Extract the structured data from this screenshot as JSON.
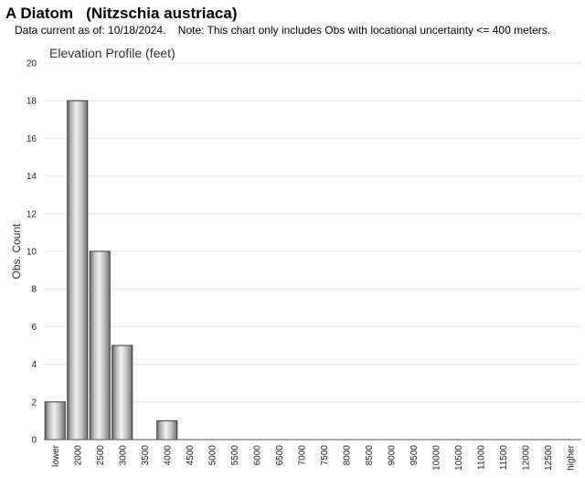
{
  "header": {
    "title": "A Diatom   (Nitzschia austriaca)",
    "note": "Data current as of: 10/18/2024.    Note: This chart only includes Obs with locational uncertainty <= 400 meters."
  },
  "chart_data": {
    "type": "bar",
    "title": "Elevation Profile (feet)",
    "xlabel": "",
    "ylabel": "Obs. Count",
    "ylim": [
      0,
      20
    ],
    "yticks": [
      0,
      2,
      4,
      6,
      8,
      10,
      12,
      14,
      16,
      18,
      20
    ],
    "grid": true,
    "categories": [
      "lower",
      "2000",
      "2500",
      "3000",
      "3500",
      "4000",
      "4500",
      "5000",
      "5500",
      "6000",
      "6500",
      "7000",
      "7500",
      "8000",
      "8500",
      "9000",
      "9500",
      "10000",
      "10500",
      "11000",
      "11500",
      "12000",
      "12500",
      "higher"
    ],
    "values": [
      2,
      18,
      10,
      5,
      0,
      1,
      0,
      0,
      0,
      0,
      0,
      0,
      0,
      0,
      0,
      0,
      0,
      0,
      0,
      0,
      0,
      0,
      0,
      0
    ]
  }
}
